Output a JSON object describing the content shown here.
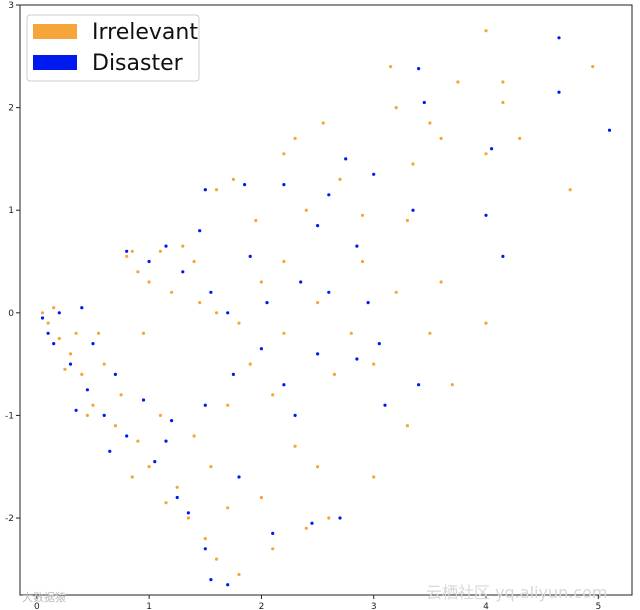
{
  "chart_data": {
    "type": "scatter",
    "title": "",
    "xlabel": "",
    "ylabel": "",
    "xlim": [
      -0.15,
      5.3
    ],
    "ylim": [
      -2.75,
      3.0
    ],
    "x_ticks": [
      "0",
      "1",
      "2",
      "3",
      "4",
      "5"
    ],
    "y_ticks": [
      "3",
      "2",
      "1",
      "0",
      "-1",
      "-2"
    ],
    "grid": false,
    "legend_position": "top-left",
    "series": [
      {
        "name": "Irrelevant",
        "color": "#f5a53a",
        "points": [
          [
            4.0,
            2.75
          ],
          [
            3.15,
            2.4
          ],
          [
            4.95,
            2.4
          ],
          [
            4.15,
            2.25
          ],
          [
            3.75,
            2.25
          ],
          [
            3.2,
            2.0
          ],
          [
            4.15,
            2.05
          ],
          [
            3.5,
            1.85
          ],
          [
            2.55,
            1.85
          ],
          [
            2.3,
            1.7
          ],
          [
            3.6,
            1.7
          ],
          [
            4.0,
            1.55
          ],
          [
            4.75,
            1.2
          ],
          [
            3.35,
            1.45
          ],
          [
            2.2,
            1.55
          ],
          [
            1.75,
            1.3
          ],
          [
            1.6,
            1.2
          ],
          [
            1.5,
            1.2
          ],
          [
            2.4,
            1.0
          ],
          [
            2.9,
            0.95
          ],
          [
            3.3,
            0.9
          ],
          [
            1.3,
            0.65
          ],
          [
            1.1,
            0.6
          ],
          [
            0.85,
            0.6
          ],
          [
            0.8,
            0.55
          ],
          [
            0.9,
            0.4
          ],
          [
            1.0,
            0.3
          ],
          [
            1.2,
            0.2
          ],
          [
            1.45,
            0.1
          ],
          [
            1.6,
            0.0
          ],
          [
            1.8,
            -0.1
          ],
          [
            2.0,
            0.3
          ],
          [
            2.2,
            0.5
          ],
          [
            2.5,
            0.1
          ],
          [
            2.8,
            -0.2
          ],
          [
            3.0,
            -0.5
          ],
          [
            3.5,
            -0.2
          ],
          [
            3.7,
            -0.7
          ],
          [
            3.3,
            -1.1
          ],
          [
            3.0,
            -1.6
          ],
          [
            2.6,
            -2.0
          ],
          [
            2.4,
            -2.1
          ],
          [
            2.1,
            -2.3
          ],
          [
            1.8,
            -2.55
          ],
          [
            1.6,
            -2.4
          ],
          [
            1.5,
            -2.2
          ],
          [
            1.35,
            -2.0
          ],
          [
            1.25,
            -1.7
          ],
          [
            1.0,
            -1.5
          ],
          [
            0.9,
            -1.25
          ],
          [
            0.7,
            -1.1
          ],
          [
            0.5,
            -0.9
          ],
          [
            0.4,
            -0.6
          ],
          [
            0.3,
            -0.4
          ],
          [
            0.2,
            -0.25
          ],
          [
            0.1,
            -0.1
          ],
          [
            0.05,
            0.0
          ],
          [
            0.15,
            0.05
          ],
          [
            0.35,
            -0.2
          ],
          [
            0.6,
            -0.5
          ],
          [
            0.75,
            -0.8
          ],
          [
            1.1,
            -1.0
          ],
          [
            1.4,
            -1.2
          ],
          [
            1.7,
            -0.9
          ],
          [
            1.9,
            -0.5
          ],
          [
            2.1,
            -0.8
          ],
          [
            2.3,
            -1.3
          ],
          [
            2.5,
            -1.5
          ],
          [
            2.0,
            -1.8
          ],
          [
            1.7,
            -1.9
          ],
          [
            4.0,
            -0.1
          ],
          [
            3.6,
            0.3
          ],
          [
            4.3,
            1.7
          ],
          [
            2.7,
            1.3
          ],
          [
            2.9,
            0.5
          ],
          [
            3.2,
            0.2
          ],
          [
            2.65,
            -0.6
          ],
          [
            2.2,
            -0.2
          ],
          [
            1.95,
            0.9
          ],
          [
            1.4,
            0.5
          ],
          [
            0.95,
            -0.2
          ],
          [
            0.55,
            -0.2
          ],
          [
            0.25,
            -0.55
          ],
          [
            0.45,
            -1.0
          ],
          [
            0.85,
            -1.6
          ],
          [
            1.15,
            -1.85
          ],
          [
            1.55,
            -1.5
          ]
        ]
      },
      {
        "name": "Disaster",
        "color": "#0019ee",
        "points": [
          [
            4.65,
            2.68
          ],
          [
            3.4,
            2.38
          ],
          [
            4.65,
            2.15
          ],
          [
            3.45,
            2.05
          ],
          [
            5.1,
            1.78
          ],
          [
            4.05,
            1.6
          ],
          [
            2.75,
            1.5
          ],
          [
            3.0,
            1.35
          ],
          [
            2.6,
            1.15
          ],
          [
            2.2,
            1.25
          ],
          [
            1.85,
            1.25
          ],
          [
            1.5,
            1.2
          ],
          [
            3.35,
            1.0
          ],
          [
            4.0,
            0.95
          ],
          [
            4.15,
            0.55
          ],
          [
            2.5,
            0.85
          ],
          [
            2.85,
            0.65
          ],
          [
            1.15,
            0.65
          ],
          [
            0.8,
            0.6
          ],
          [
            1.0,
            0.5
          ],
          [
            1.3,
            0.4
          ],
          [
            1.55,
            0.2
          ],
          [
            1.7,
            0.0
          ],
          [
            2.05,
            0.1
          ],
          [
            2.35,
            0.3
          ],
          [
            2.6,
            0.2
          ],
          [
            2.95,
            0.1
          ],
          [
            3.05,
            -0.3
          ],
          [
            3.1,
            -0.9
          ],
          [
            3.4,
            -0.7
          ],
          [
            2.7,
            -2.0
          ],
          [
            2.45,
            -2.05
          ],
          [
            2.1,
            -2.15
          ],
          [
            1.7,
            -2.65
          ],
          [
            1.55,
            -2.6
          ],
          [
            1.5,
            -2.3
          ],
          [
            1.35,
            -1.95
          ],
          [
            1.25,
            -1.8
          ],
          [
            1.05,
            -1.45
          ],
          [
            0.8,
            -1.2
          ],
          [
            0.6,
            -1.0
          ],
          [
            0.45,
            -0.75
          ],
          [
            0.3,
            -0.5
          ],
          [
            0.15,
            -0.3
          ],
          [
            0.05,
            -0.05
          ],
          [
            0.2,
            0.0
          ],
          [
            0.4,
            0.05
          ],
          [
            0.5,
            -0.3
          ],
          [
            0.7,
            -0.6
          ],
          [
            0.95,
            -0.85
          ],
          [
            1.2,
            -1.05
          ],
          [
            1.5,
            -0.9
          ],
          [
            1.75,
            -0.6
          ],
          [
            2.0,
            -0.35
          ],
          [
            2.2,
            -0.7
          ],
          [
            2.5,
            -0.4
          ],
          [
            2.85,
            -0.45
          ],
          [
            1.9,
            0.55
          ],
          [
            1.45,
            0.8
          ],
          [
            0.65,
            -1.35
          ],
          [
            0.35,
            -0.95
          ],
          [
            0.1,
            -0.2
          ],
          [
            1.15,
            -1.25
          ],
          [
            1.8,
            -1.6
          ],
          [
            2.3,
            -1.0
          ]
        ]
      }
    ]
  },
  "legend": {
    "items": [
      {
        "label": "Irrelevant",
        "color": "#f5a53a"
      },
      {
        "label": "Disaster",
        "color": "#0019ee"
      }
    ]
  },
  "watermarks": {
    "left": "大数据猿",
    "right": "云栖社区 yq.aliyun.com"
  }
}
